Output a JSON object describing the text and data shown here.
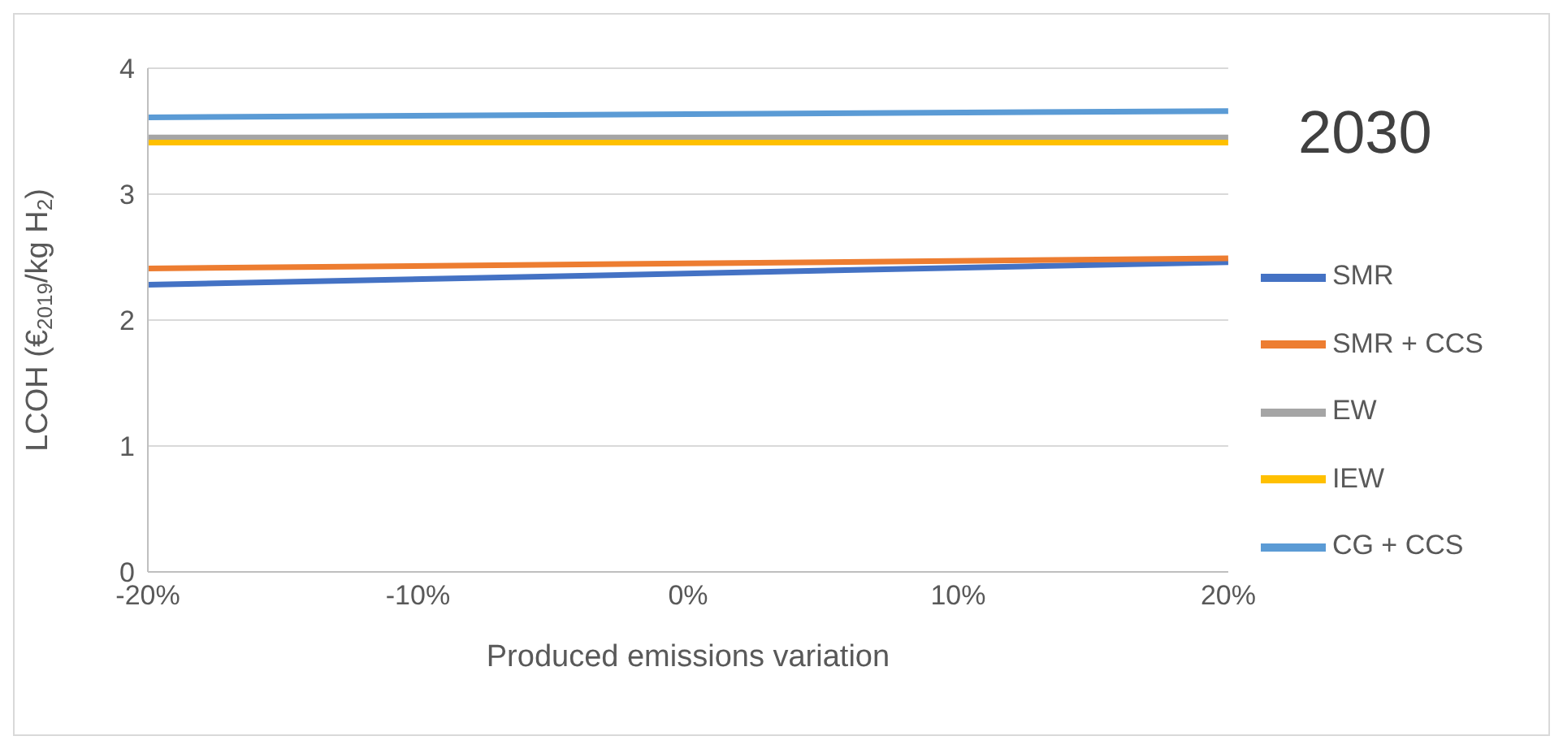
{
  "chart_data": {
    "type": "line",
    "title": "2030",
    "xlabel": "Produced emissions variation",
    "ylabel": "LCOH (€$_{2019}$/kg H$_{2}$)",
    "x": [
      -20,
      20
    ],
    "xlim": [
      -20,
      20
    ],
    "xticks": [
      {
        "value": -20,
        "label": "-20%"
      },
      {
        "value": -10,
        "label": "-10%"
      },
      {
        "value": 0,
        "label": "0%"
      },
      {
        "value": 10,
        "label": "10%"
      },
      {
        "value": 20,
        "label": "20%"
      }
    ],
    "ylim": [
      0,
      4
    ],
    "yticks": [
      0,
      1,
      2,
      3,
      4
    ],
    "grid": "y",
    "legend": "right",
    "marker": "none",
    "line_style": "solid",
    "series": [
      {
        "name": "SMR",
        "color": "#4472c4",
        "values": [
          2.28,
          2.46
        ]
      },
      {
        "name": "SMR + CCS",
        "color": "#ed7d31",
        "values": [
          2.41,
          2.49
        ]
      },
      {
        "name": "EW",
        "color": "#a5a5a5",
        "values": [
          3.45,
          3.45
        ]
      },
      {
        "name": "IEW",
        "color": "#ffc000",
        "values": [
          3.41,
          3.41
        ]
      },
      {
        "name": "CG + CCS",
        "color": "#5b9bd5",
        "values": [
          3.61,
          3.66
        ]
      }
    ]
  }
}
